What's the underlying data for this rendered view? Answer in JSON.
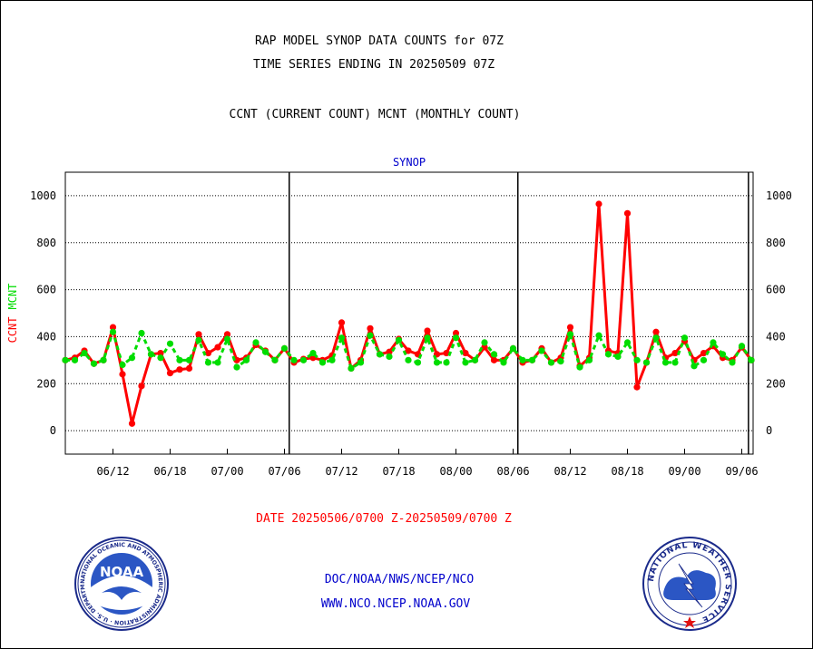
{
  "title_line1": "RAP MODEL SYNOP DATA COUNTS for 07Z",
  "title_line2": "TIME SERIES ENDING IN 20250509 07Z",
  "legend_line": "CCNT (CURRENT COUNT) MCNT (MONTHLY COUNT)",
  "date_range": "DATE 20250506/0700 Z-20250509/0700 Z",
  "footer_line1": "DOC/NOAA/NWS/NCEP/NCO",
  "footer_line2": "WWW.NCO.NCEP.NOAA.GOV",
  "logos": {
    "left": {
      "text": "NOAA",
      "ring_text": "NATIONAL OCEANIC AND ATMOSPHERIC ADMINISTRATION · U.S. DEPARTMENT OF COMMERCE"
    },
    "right": {
      "ring_text": "NATIONAL WEATHER SERVICE"
    }
  },
  "colors": {
    "ccnt": "#ff0000",
    "mcnt": "#00dd00",
    "panel_title": "#0000cc",
    "footer": "#0000cc",
    "date": "#ff0000"
  },
  "chart_data": {
    "type": "line",
    "panel_title": "SYNOP",
    "ylabel": "CCNT  MCNT",
    "ylabel_parts": [
      "CCNT",
      "MCNT"
    ],
    "ylim": [
      -100,
      1100
    ],
    "yticks": [
      0,
      200,
      400,
      600,
      800,
      1000
    ],
    "ytick_labels": [
      "0",
      "200",
      "400",
      "600",
      "800",
      "1000"
    ],
    "grid": "horizontal-dotted",
    "x_count": 73,
    "xticks": [
      {
        "index": 5,
        "label": "06/12"
      },
      {
        "index": 11,
        "label": "06/18"
      },
      {
        "index": 17,
        "label": "07/00"
      },
      {
        "index": 23,
        "label": "07/06"
      },
      {
        "index": 29,
        "label": "07/12"
      },
      {
        "index": 35,
        "label": "07/18"
      },
      {
        "index": 41,
        "label": "08/00"
      },
      {
        "index": 47,
        "label": "08/06"
      },
      {
        "index": 53,
        "label": "08/12"
      },
      {
        "index": 59,
        "label": "08/18"
      },
      {
        "index": 65,
        "label": "09/00"
      },
      {
        "index": 71,
        "label": "09/06"
      }
    ],
    "day_separators": [
      23.5,
      47.5,
      71.7
    ],
    "series": [
      {
        "name": "CCNT",
        "values": [
          300,
          310,
          340,
          285,
          300,
          440,
          240,
          30,
          190,
          325,
          330,
          245,
          260,
          265,
          410,
          330,
          355,
          410,
          300,
          310,
          365,
          340,
          300,
          350,
          290,
          305,
          310,
          300,
          320,
          460,
          265,
          300,
          435,
          325,
          335,
          390,
          340,
          325,
          425,
          325,
          330,
          415,
          330,
          300,
          355,
          300,
          300,
          350,
          290,
          300,
          350,
          290,
          310,
          440,
          275,
          310,
          965,
          340,
          330,
          925,
          185,
          290,
          420,
          310,
          330,
          380,
          300,
          330,
          360,
          310,
          300,
          355,
          300
        ]
      },
      {
        "name": "MCNT",
        "values": [
          300,
          300,
          330,
          285,
          300,
          420,
          280,
          310,
          415,
          325,
          310,
          370,
          300,
          300,
          385,
          290,
          290,
          390,
          270,
          300,
          375,
          335,
          300,
          350,
          300,
          300,
          330,
          290,
          300,
          395,
          265,
          290,
          405,
          325,
          315,
          385,
          300,
          290,
          395,
          290,
          290,
          395,
          290,
          300,
          375,
          325,
          290,
          350,
          300,
          300,
          340,
          290,
          295,
          410,
          270,
          300,
          405,
          325,
          315,
          375,
          300,
          290,
          395,
          290,
          290,
          395,
          275,
          300,
          375,
          325,
          290,
          360,
          300
        ]
      }
    ]
  }
}
